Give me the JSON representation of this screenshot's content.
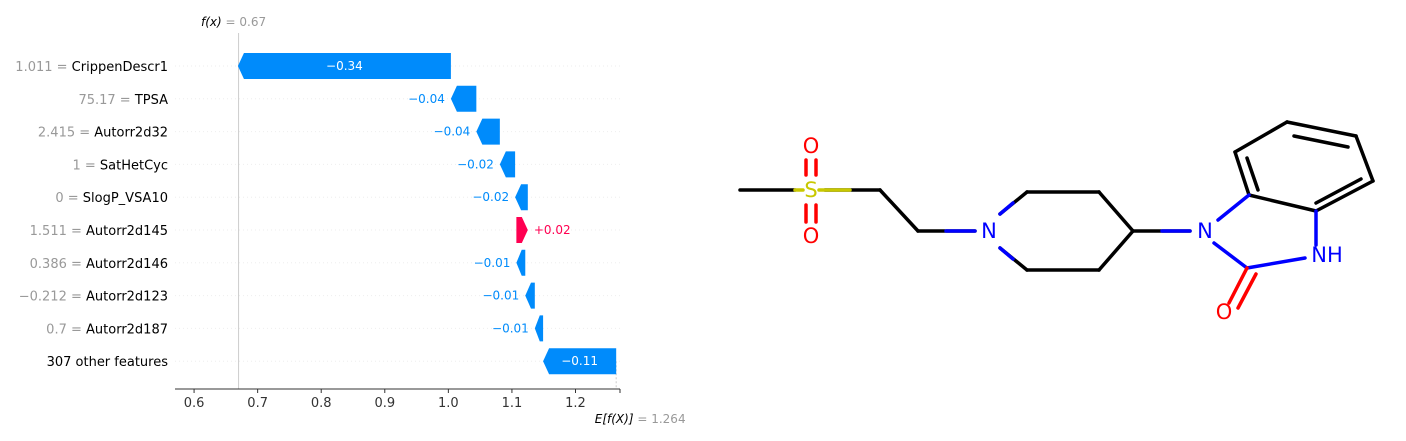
{
  "chart_data": {
    "type": "waterfall",
    "fx_symbol": "f(x)",
    "fx_value": "0.67",
    "fx": 0.67,
    "base_symbol": "E[f(X)]",
    "base_value_text": "1.264",
    "base_value": 1.264,
    "xlim": [
      0.57,
      1.27
    ],
    "xticks": [
      0.6,
      0.7,
      0.8,
      0.9,
      1.0,
      1.1,
      1.2
    ],
    "xtick_labels": [
      "0.6",
      "0.7",
      "0.8",
      "0.9",
      "1.0",
      "1.1",
      "1.2"
    ],
    "colors": {
      "negative": "#008bfb",
      "positive": "#ff0051",
      "feature_value": "#999999"
    },
    "features": [
      {
        "value": "1.011",
        "name": "CrippenDescr1",
        "shap": -0.335,
        "label": "−0.34"
      },
      {
        "value": "75.17",
        "name": "TPSA",
        "shap": -0.04,
        "label": "−0.04"
      },
      {
        "value": "2.415",
        "name": "Autorr2d32",
        "shap": -0.037,
        "label": "−0.04"
      },
      {
        "value": "1",
        "name": "SatHetCyc",
        "shap": -0.024,
        "label": "−0.02"
      },
      {
        "value": "0",
        "name": "SlogP_VSA10",
        "shap": -0.02,
        "label": "−0.02"
      },
      {
        "value": "1.511",
        "name": "Autorr2d145",
        "shap": 0.018,
        "label": "+0.02"
      },
      {
        "value": "0.386",
        "name": "Autorr2d146",
        "shap": -0.014,
        "label": "−0.01"
      },
      {
        "value": "−0.212",
        "name": "Autorr2d123",
        "shap": -0.015,
        "label": "−0.01"
      },
      {
        "value": "0.7",
        "name": "Autorr2d187",
        "shap": -0.013,
        "label": "−0.01"
      },
      {
        "value": "",
        "name": "307 other features",
        "shap": -0.115,
        "label": "−0.11"
      }
    ]
  },
  "molecule": {
    "atoms": {
      "sulfur": "S",
      "oxygen": "O",
      "nitrogen": "N",
      "nh": "NH"
    },
    "colors": {
      "bond": "#000000",
      "sulfur": "#c8c800",
      "oxygen": "#ff0000",
      "nitrogen": "#0000ff"
    }
  }
}
